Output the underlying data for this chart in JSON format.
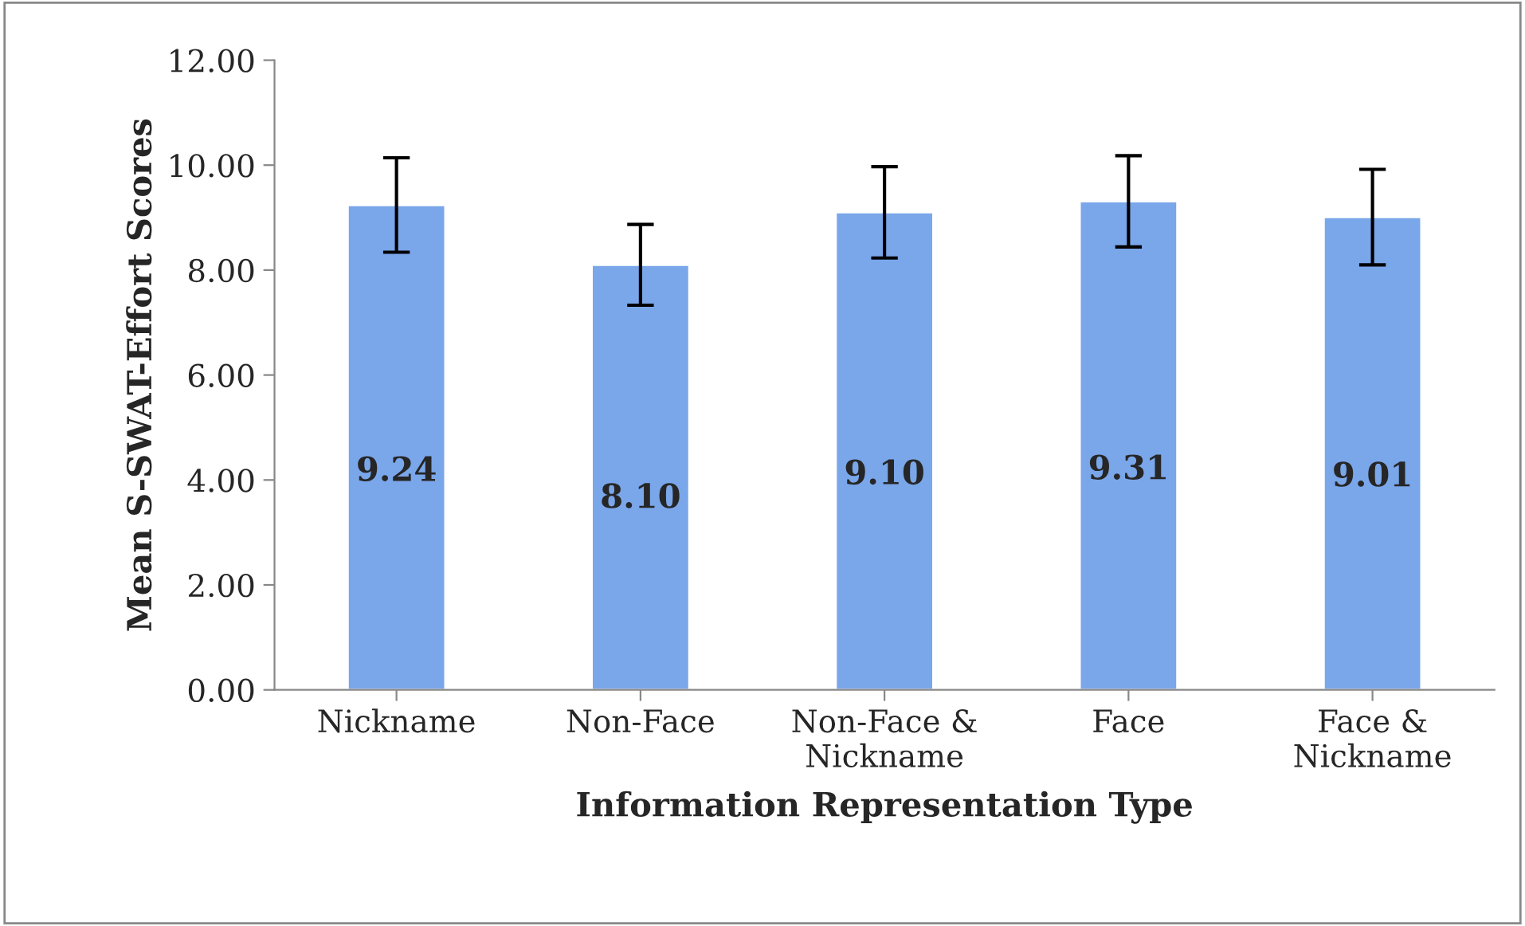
{
  "chart_data": {
    "type": "bar",
    "xlabel": "Information Representation Type",
    "ylabel": "Mean S-SWAT-Effort Scores",
    "categories": [
      "Nickname",
      "Non-Face",
      "Non-Face &\nNickname",
      "Face",
      "Face &\nNickname"
    ],
    "values": [
      9.24,
      8.1,
      9.1,
      9.31,
      9.01
    ],
    "value_labels": [
      "9.24",
      "8.10",
      "9.10",
      "9.31",
      "9.01"
    ],
    "errors": [
      0.9,
      0.77,
      0.87,
      0.87,
      0.91
    ],
    "color": "#7aa6ea",
    "ylim": [
      0,
      12
    ],
    "yticks": [
      {
        "value": 0,
        "label": "0.00"
      },
      {
        "value": 2,
        "label": "2.00"
      },
      {
        "value": 4,
        "label": "4.00"
      },
      {
        "value": 6,
        "label": "6.00"
      },
      {
        "value": 8,
        "label": "8.00"
      },
      {
        "value": 10,
        "label": "10.00"
      },
      {
        "value": 12,
        "label": "12.00"
      }
    ],
    "grid": false,
    "legend": false
  }
}
